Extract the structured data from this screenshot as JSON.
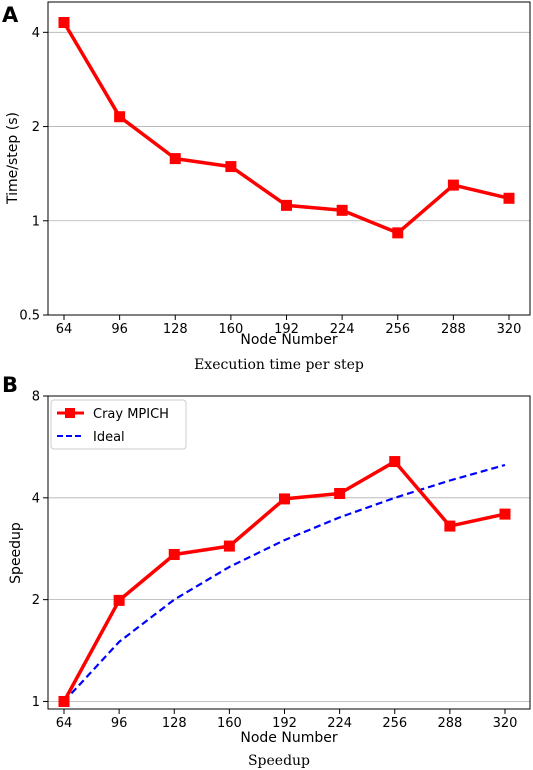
{
  "chart_data": [
    {
      "panel": "A",
      "type": "line",
      "caption": "Execution time per step",
      "xlabel": "Node Number",
      "ylabel": "Time/step (s)",
      "yscale": "log2",
      "ylim": [
        0.5,
        5.0
      ],
      "categories": [
        "64",
        "96",
        "128",
        "160",
        "192",
        "224",
        "256",
        "288",
        "320"
      ],
      "yticks": [
        0.5,
        1,
        2,
        4
      ],
      "ytick_labels": [
        "0.5",
        "1",
        "2",
        "4"
      ],
      "grid": "y",
      "legend": false,
      "series": [
        {
          "color": "#ff0000",
          "marker": "square",
          "values": [
            4.3,
            2.15,
            1.58,
            1.49,
            1.12,
            1.08,
            0.915,
            1.3,
            1.18
          ]
        }
      ]
    },
    {
      "panel": "B",
      "type": "line",
      "caption": "Speedup",
      "xlabel": "Node Number",
      "ylabel": "Speedup",
      "yscale": "log2",
      "ylim": [
        0.95,
        8.0
      ],
      "categories": [
        "64",
        "96",
        "128",
        "160",
        "192",
        "224",
        "256",
        "288",
        "320"
      ],
      "yticks": [
        1,
        2,
        4,
        8
      ],
      "ytick_labels": [
        "1",
        "2",
        "4",
        "8"
      ],
      "grid": "y",
      "legend": "top-left",
      "series": [
        {
          "name": "Cray MPICH",
          "color": "#ff0000",
          "style": "solid",
          "marker": "square",
          "values": [
            1.0,
            1.99,
            2.72,
            2.88,
            3.97,
            4.12,
            5.12,
            3.3,
            3.58
          ]
        },
        {
          "name": "Ideal",
          "color": "#0000ff",
          "style": "dashed",
          "marker": "none",
          "values": [
            1.0,
            1.5,
            2.0,
            2.5,
            3.0,
            3.5,
            4.0,
            4.5,
            5.0
          ]
        }
      ]
    }
  ]
}
